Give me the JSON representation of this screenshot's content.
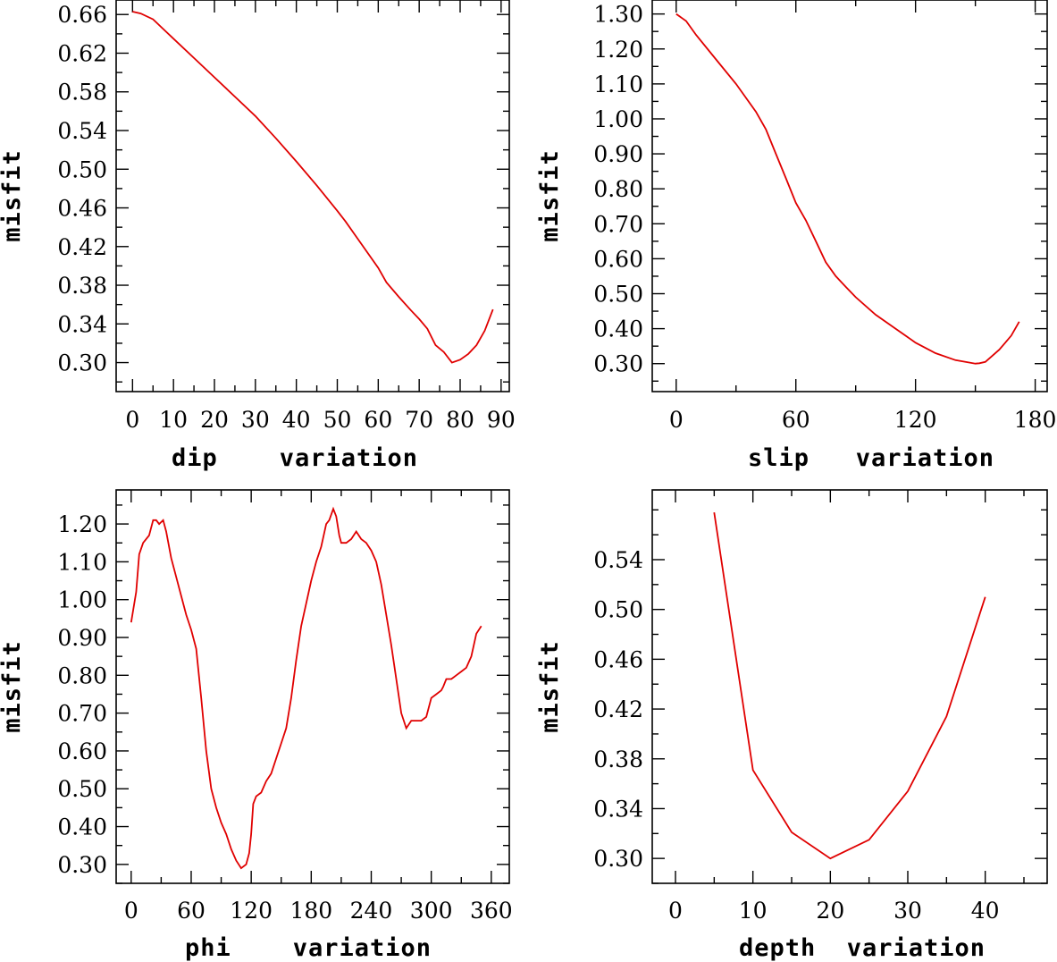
{
  "chart_data": [
    {
      "type": "line",
      "title": "",
      "xlabel": "dip    variation",
      "ylabel": "misfit",
      "xlim": [
        -4,
        92
      ],
      "ylim": [
        0.27,
        0.675
      ],
      "xticks": [
        0,
        10,
        20,
        30,
        40,
        50,
        60,
        70,
        80,
        90
      ],
      "xtick_labels": [
        "0",
        "10",
        "20",
        "30",
        "40",
        "50",
        "60",
        "70",
        "80",
        "90"
      ],
      "yticks": [
        0.3,
        0.34,
        0.38,
        0.42,
        0.46,
        0.5,
        0.54,
        0.58,
        0.62,
        0.66
      ],
      "ytick_labels": [
        "0.30",
        "0.34",
        "0.38",
        "0.42",
        "0.46",
        "0.50",
        "0.54",
        "0.58",
        "0.62",
        "0.66"
      ],
      "series": [
        {
          "name": "misfit",
          "color": "#e00000",
          "x": [
            0,
            2,
            5,
            8,
            10,
            15,
            20,
            25,
            30,
            35,
            40,
            45,
            50,
            52,
            55,
            60,
            62,
            65,
            68,
            70,
            72,
            74,
            76,
            78,
            80,
            82,
            84,
            86,
            88
          ],
          "y": [
            0.663,
            0.661,
            0.655,
            0.643,
            0.635,
            0.615,
            0.595,
            0.575,
            0.555,
            0.532,
            0.508,
            0.483,
            0.457,
            0.446,
            0.428,
            0.398,
            0.383,
            0.368,
            0.354,
            0.345,
            0.335,
            0.318,
            0.311,
            0.3,
            0.303,
            0.309,
            0.318,
            0.333,
            0.355
          ]
        }
      ]
    },
    {
      "type": "line",
      "title": "",
      "xlabel": "slip   variation",
      "ylabel": "misfit",
      "xlim": [
        -12,
        186
      ],
      "ylim": [
        0.22,
        1.34
      ],
      "xticks": [
        0,
        60,
        120,
        180
      ],
      "xtick_labels": [
        "0",
        "60",
        "120",
        "180"
      ],
      "yticks": [
        0.3,
        0.4,
        0.5,
        0.6,
        0.7,
        0.8,
        0.9,
        1.0,
        1.1,
        1.2,
        1.3
      ],
      "ytick_labels": [
        "0.30",
        "0.40",
        "0.50",
        "0.60",
        "0.70",
        "0.80",
        "0.90",
        "1.00",
        "1.10",
        "1.20",
        "1.30"
      ],
      "series": [
        {
          "name": "misfit",
          "color": "#e00000",
          "x": [
            0,
            5,
            10,
            20,
            30,
            40,
            45,
            50,
            55,
            60,
            65,
            70,
            75,
            80,
            85,
            90,
            100,
            110,
            120,
            130,
            140,
            145,
            150,
            152,
            155,
            158,
            162,
            165,
            168,
            172
          ],
          "y": [
            1.3,
            1.28,
            1.24,
            1.17,
            1.1,
            1.02,
            0.97,
            0.9,
            0.83,
            0.76,
            0.71,
            0.65,
            0.59,
            0.55,
            0.52,
            0.49,
            0.44,
            0.4,
            0.36,
            0.33,
            0.31,
            0.305,
            0.3,
            0.301,
            0.305,
            0.32,
            0.34,
            0.36,
            0.38,
            0.42
          ]
        }
      ]
    },
    {
      "type": "line",
      "title": "",
      "xlabel": "phi    variation",
      "ylabel": "misfit",
      "xlim": [
        -15,
        378
      ],
      "ylim": [
        0.25,
        1.29
      ],
      "xticks": [
        0,
        60,
        120,
        180,
        240,
        300,
        360
      ],
      "xtick_labels": [
        "0",
        "60",
        "120",
        "180",
        "240",
        "300",
        "360"
      ],
      "yticks": [
        0.3,
        0.4,
        0.5,
        0.6,
        0.7,
        0.8,
        0.9,
        1.0,
        1.1,
        1.2
      ],
      "ytick_labels": [
        "0.30",
        "0.40",
        "0.50",
        "0.60",
        "0.70",
        "0.80",
        "0.90",
        "1.00",
        "1.10",
        "1.20"
      ],
      "series": [
        {
          "name": "misfit",
          "color": "#e00000",
          "x": [
            0,
            5,
            8,
            12,
            18,
            22,
            25,
            28,
            32,
            35,
            40,
            45,
            50,
            55,
            60,
            65,
            70,
            75,
            80,
            85,
            90,
            95,
            100,
            105,
            110,
            115,
            118,
            120,
            122,
            125,
            130,
            135,
            140,
            145,
            150,
            155,
            160,
            165,
            170,
            175,
            180,
            185,
            190,
            195,
            198,
            202,
            205,
            208,
            210,
            212,
            215,
            220,
            225,
            230,
            235,
            240,
            245,
            250,
            255,
            260,
            265,
            270,
            275,
            280,
            285,
            290,
            295,
            300,
            305,
            310,
            312,
            315,
            320,
            325,
            330,
            335,
            340,
            345,
            350
          ],
          "y": [
            0.94,
            1.02,
            1.12,
            1.15,
            1.17,
            1.21,
            1.21,
            1.2,
            1.21,
            1.18,
            1.11,
            1.06,
            1.01,
            0.96,
            0.92,
            0.87,
            0.74,
            0.6,
            0.5,
            0.45,
            0.41,
            0.38,
            0.34,
            0.31,
            0.29,
            0.3,
            0.33,
            0.38,
            0.46,
            0.48,
            0.49,
            0.52,
            0.54,
            0.58,
            0.62,
            0.66,
            0.74,
            0.84,
            0.93,
            0.99,
            1.05,
            1.1,
            1.14,
            1.2,
            1.21,
            1.24,
            1.22,
            1.17,
            1.15,
            1.15,
            1.15,
            1.16,
            1.18,
            1.16,
            1.15,
            1.13,
            1.1,
            1.04,
            0.96,
            0.88,
            0.79,
            0.7,
            0.66,
            0.68,
            0.68,
            0.68,
            0.69,
            0.74,
            0.75,
            0.76,
            0.77,
            0.79,
            0.79,
            0.8,
            0.81,
            0.82,
            0.85,
            0.91,
            0.93
          ]
        }
      ]
    },
    {
      "type": "line",
      "title": "",
      "xlabel": "depth  variation",
      "ylabel": "misfit",
      "xlim": [
        -3,
        48
      ],
      "ylim": [
        0.28,
        0.596
      ],
      "xticks": [
        0,
        10,
        20,
        30,
        40
      ],
      "xtick_labels": [
        "0",
        "10",
        "20",
        "30",
        "40"
      ],
      "yticks": [
        0.3,
        0.34,
        0.38,
        0.42,
        0.46,
        0.5,
        0.54
      ],
      "ytick_labels": [
        "0.30",
        "0.34",
        "0.38",
        "0.42",
        "0.46",
        "0.50",
        "0.54"
      ],
      "series": [
        {
          "name": "misfit",
          "color": "#e00000",
          "x": [
            5,
            10,
            15,
            20,
            25,
            30,
            35,
            40
          ],
          "y": [
            0.578,
            0.371,
            0.321,
            0.3,
            0.315,
            0.354,
            0.414,
            0.51
          ]
        }
      ]
    }
  ]
}
